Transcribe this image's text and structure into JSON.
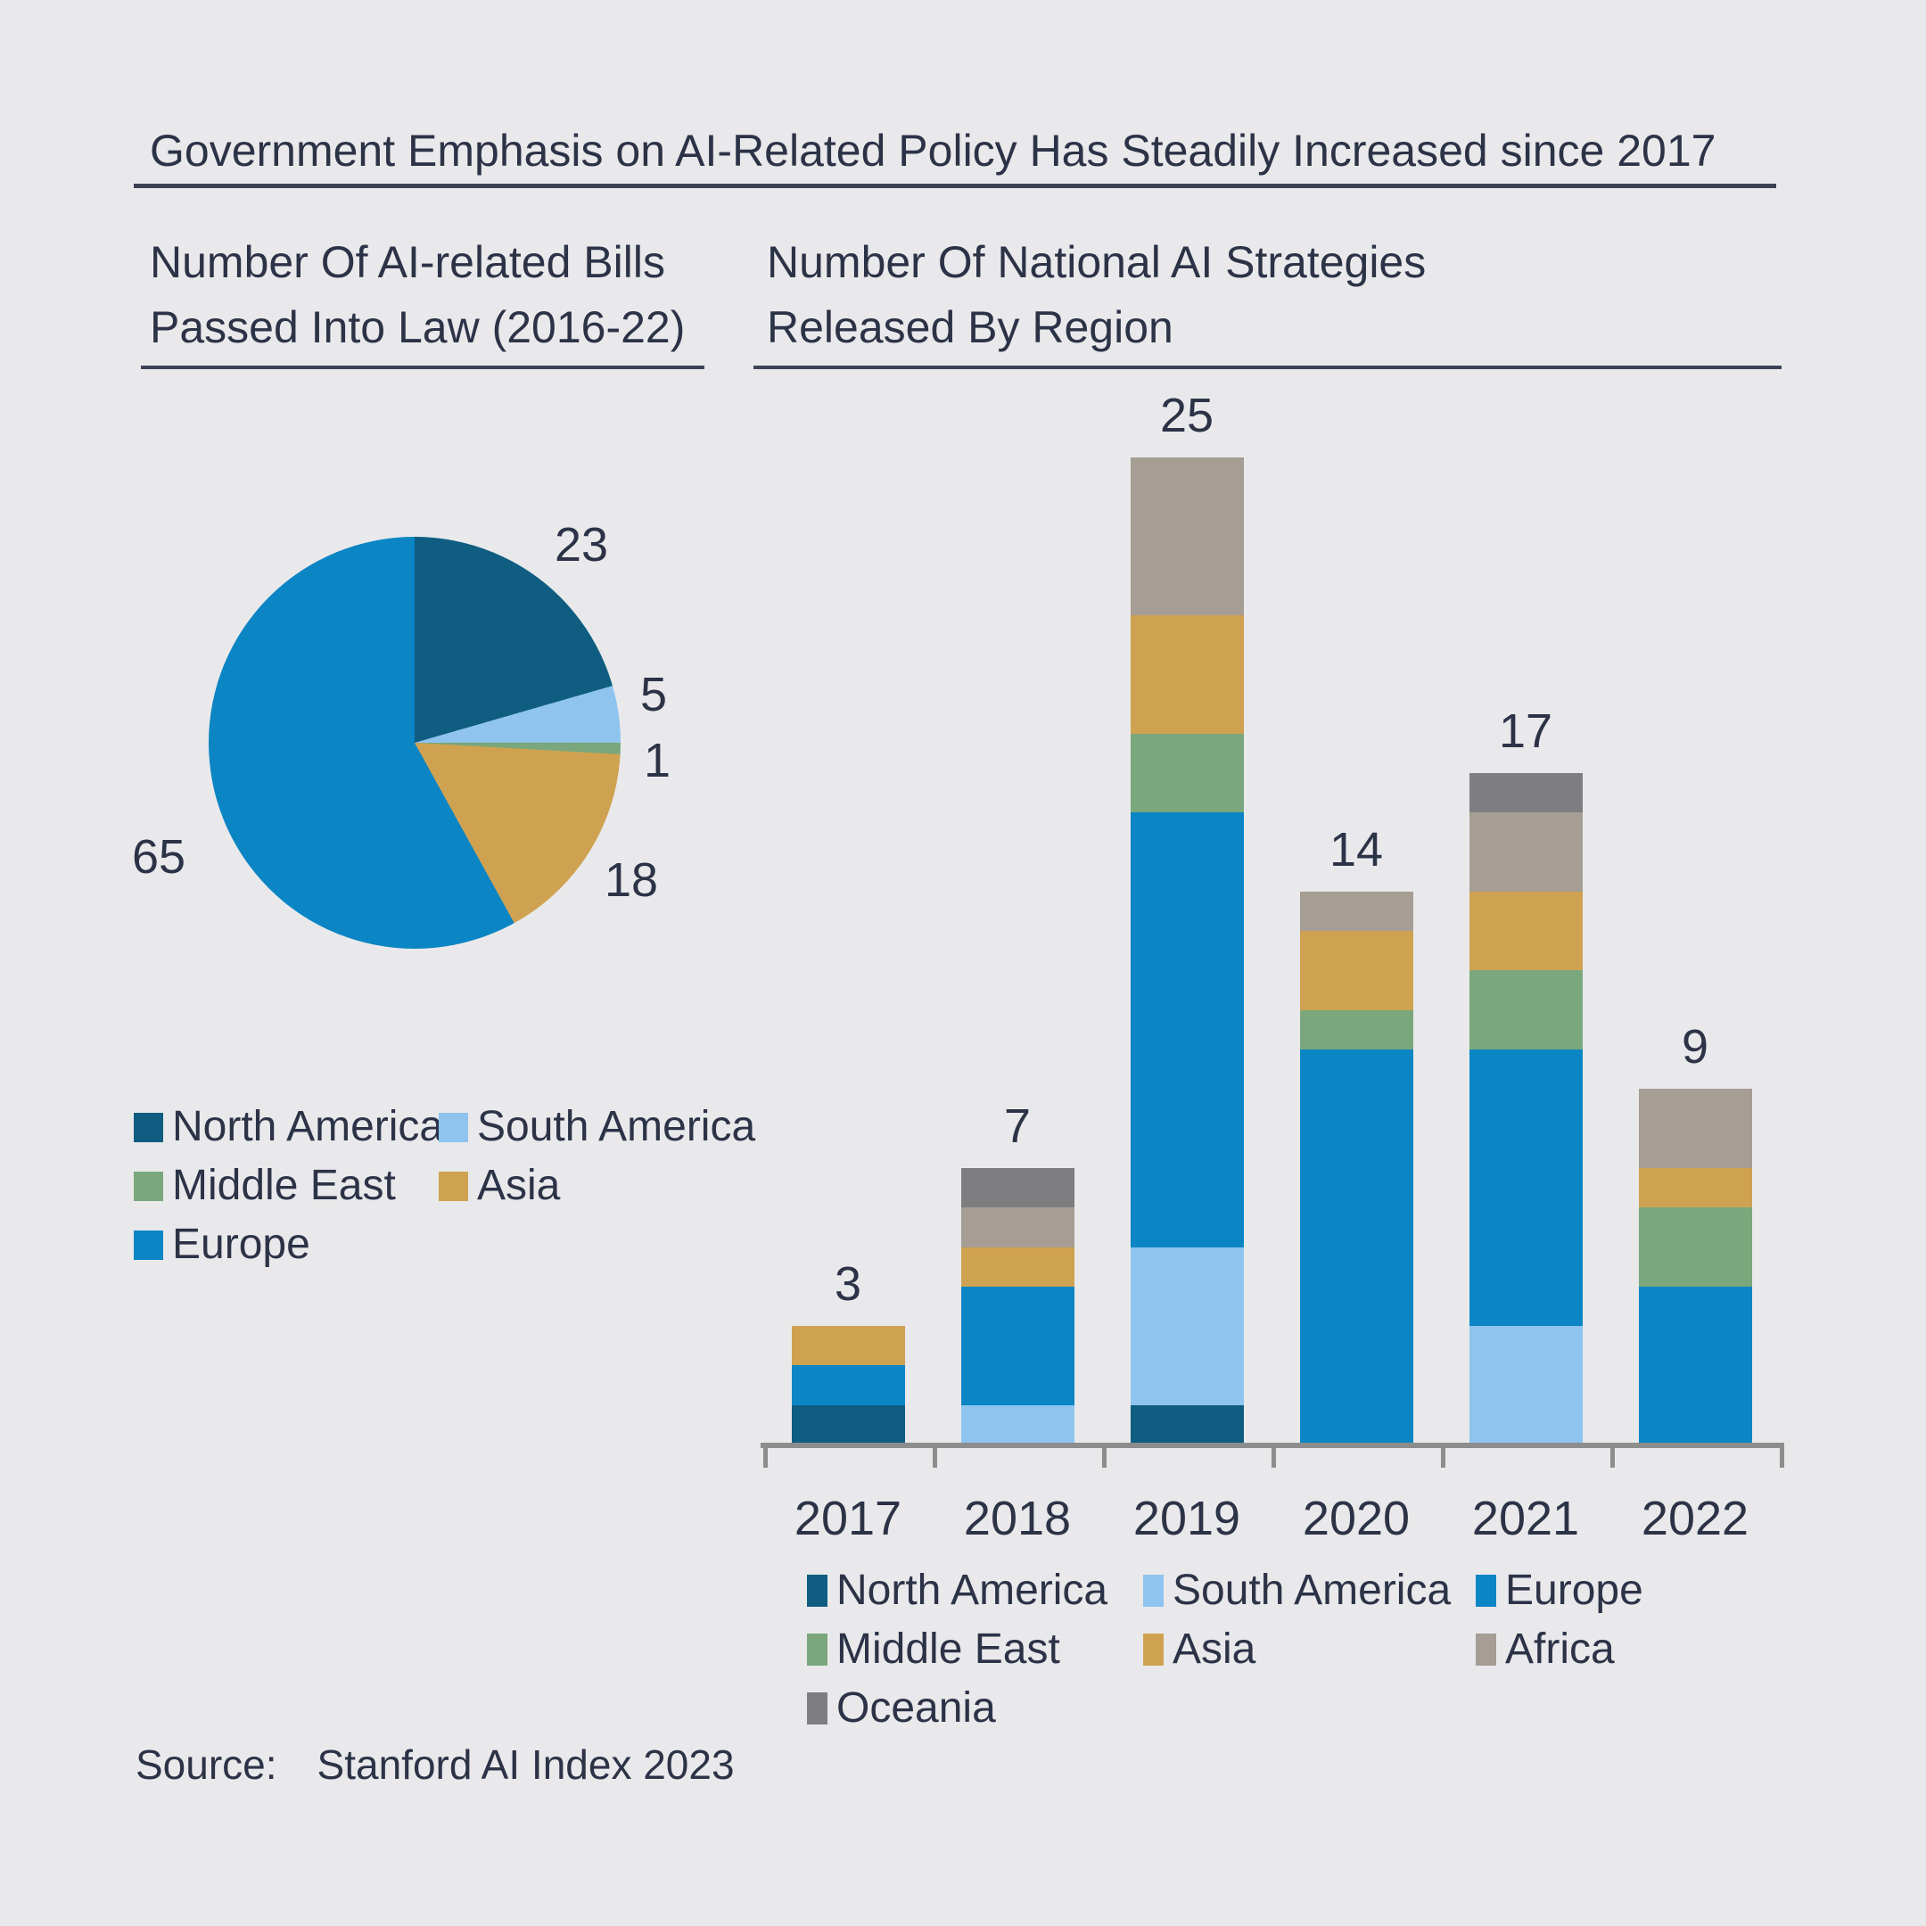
{
  "title": "Government Emphasis on AI-Related Policy Has Steadily Increased since 2017",
  "source": {
    "label": "Source:",
    "value": "Stanford AI Index 2023"
  },
  "colors": {
    "North America": "#0f5e81",
    "South America": "#8ec4ee",
    "Europe": "#0b85c4",
    "Middle East": "#7aa77b",
    "Asia": "#cfa251",
    "Africa": "#a69d94",
    "Oceania": "#7e7e81"
  },
  "background_color": "#e9e9eb",
  "text_color": "#2c3347",
  "chart_data": [
    {
      "type": "pie",
      "title_lines": "Number Of AI-related Bills\nPassed Into Law (2016-22)",
      "slices": [
        {
          "label": "North America",
          "value": 23
        },
        {
          "label": "South America",
          "value": 5
        },
        {
          "label": "Middle East",
          "value": 1
        },
        {
          "label": "Asia",
          "value": 18
        },
        {
          "label": "Europe",
          "value": 65
        }
      ],
      "total": 112,
      "start_angle_deg": 0,
      "direction": "clockwise",
      "legend_order": [
        "North America",
        "South America",
        "Middle East",
        "Asia",
        "Europe"
      ],
      "legend_columns": 2
    },
    {
      "type": "bar",
      "stacked": true,
      "title_lines": "Number Of National AI Strategies\nReleased By Region",
      "categories": [
        "2017",
        "2018",
        "2019",
        "2020",
        "2021",
        "2022"
      ],
      "series": [
        {
          "name": "North America",
          "values": [
            1,
            0,
            1,
            0,
            0,
            0
          ]
        },
        {
          "name": "South America",
          "values": [
            0,
            1,
            4,
            0,
            3,
            0
          ]
        },
        {
          "name": "Europe",
          "values": [
            1,
            3,
            11,
            10,
            7,
            4
          ]
        },
        {
          "name": "Middle East",
          "values": [
            0,
            0,
            2,
            1,
            2,
            2
          ]
        },
        {
          "name": "Asia",
          "values": [
            1,
            1,
            3,
            2,
            2,
            1
          ]
        },
        {
          "name": "Africa",
          "values": [
            0,
            1,
            4,
            1,
            2,
            2
          ]
        },
        {
          "name": "Oceania",
          "values": [
            0,
            1,
            0,
            0,
            1,
            0
          ]
        }
      ],
      "totals": [
        3,
        7,
        25,
        14,
        17,
        9
      ],
      "ylim": [
        0,
        25
      ],
      "grid": false,
      "legend_columns": 3,
      "legend_position": "bottom"
    }
  ]
}
